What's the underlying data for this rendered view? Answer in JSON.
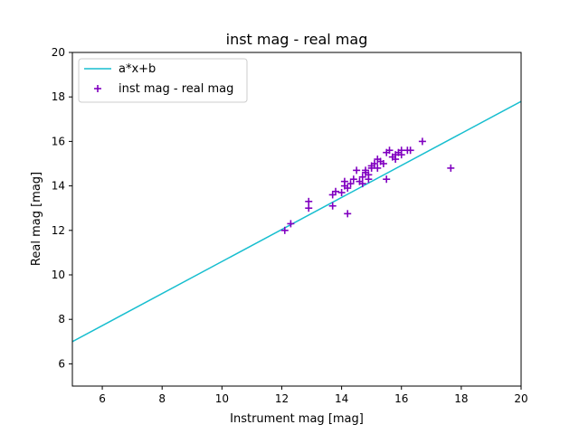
{
  "chart_data": {
    "type": "scatter",
    "title": "inst mag - real mag",
    "xlabel": "Instrument mag [mag]",
    "ylabel": "Real mag [mag]",
    "xlim": [
      5,
      20
    ],
    "ylim": [
      5,
      20
    ],
    "xticks": [
      6,
      8,
      10,
      12,
      14,
      16,
      18,
      20
    ],
    "yticks": [
      6,
      8,
      10,
      12,
      14,
      16,
      18,
      20
    ],
    "grid": false,
    "legend_placement": "upper-left",
    "colors": {
      "line": "#17becf",
      "points": "#8000c0"
    },
    "line_series": {
      "name": "a*x+b",
      "x": [
        5,
        20
      ],
      "y": [
        7.0,
        17.8
      ]
    },
    "scatter_series": {
      "name": "inst mag - real mag",
      "points": [
        [
          12.1,
          12.0
        ],
        [
          12.3,
          12.3
        ],
        [
          12.9,
          13.0
        ],
        [
          12.9,
          13.3
        ],
        [
          13.7,
          13.6
        ],
        [
          13.7,
          13.1
        ],
        [
          13.8,
          13.75
        ],
        [
          14.0,
          13.7
        ],
        [
          14.1,
          14.0
        ],
        [
          14.1,
          14.2
        ],
        [
          14.2,
          13.9
        ],
        [
          14.2,
          12.75
        ],
        [
          14.3,
          14.1
        ],
        [
          14.4,
          14.3
        ],
        [
          14.5,
          14.7
        ],
        [
          14.6,
          14.2
        ],
        [
          14.7,
          14.1
        ],
        [
          14.7,
          14.4
        ],
        [
          14.8,
          14.6
        ],
        [
          14.8,
          14.7
        ],
        [
          14.9,
          14.3
        ],
        [
          14.9,
          14.5
        ],
        [
          15.0,
          14.8
        ],
        [
          15.0,
          14.9
        ],
        [
          15.1,
          15.0
        ],
        [
          15.2,
          15.2
        ],
        [
          15.2,
          14.8
        ],
        [
          15.3,
          15.1
        ],
        [
          15.4,
          15.0
        ],
        [
          15.5,
          14.3
        ],
        [
          15.5,
          15.5
        ],
        [
          15.6,
          15.6
        ],
        [
          15.7,
          15.3
        ],
        [
          15.8,
          15.2
        ],
        [
          15.8,
          15.4
        ],
        [
          15.9,
          15.5
        ],
        [
          16.0,
          15.6
        ],
        [
          16.0,
          15.4
        ],
        [
          16.2,
          15.6
        ],
        [
          16.3,
          15.6
        ],
        [
          16.7,
          16.0
        ],
        [
          17.65,
          14.8
        ]
      ]
    }
  }
}
